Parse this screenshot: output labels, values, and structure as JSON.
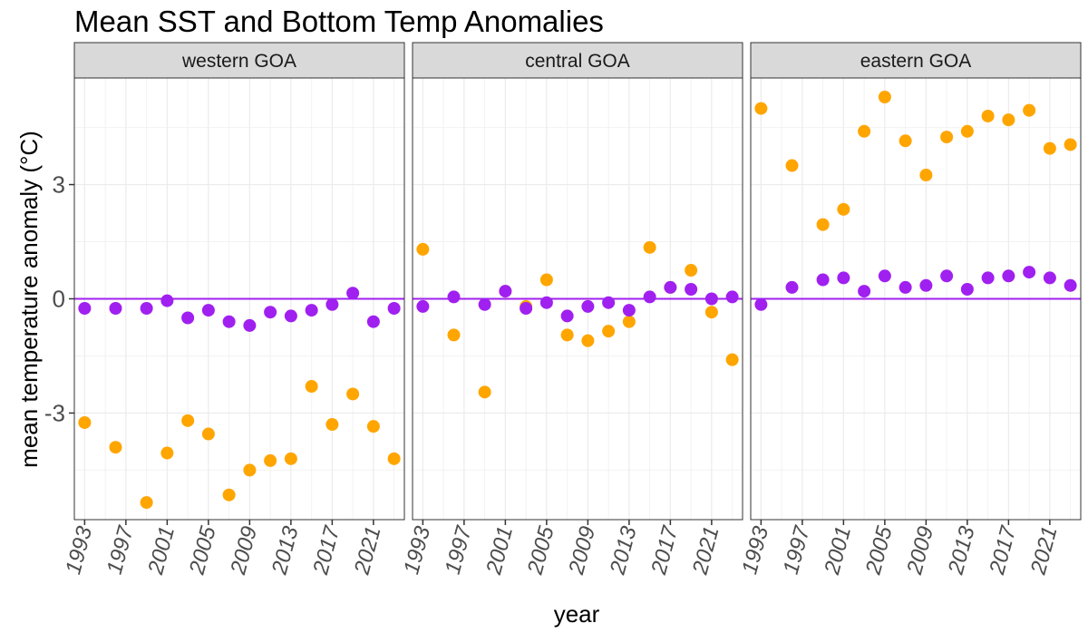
{
  "chart_data": {
    "type": "scatter",
    "title": "Mean SST and Bottom Temp Anomalies",
    "xlabel": "year",
    "ylabel": "mean temperature anomaly (°C)",
    "x_ticks": [
      1993,
      1997,
      2001,
      2005,
      2009,
      2013,
      2017,
      2021
    ],
    "y_ticks": [
      -3,
      0,
      3
    ],
    "xlim": [
      1992,
      2024
    ],
    "ylim": [
      -5.8,
      5.8
    ],
    "grid": true,
    "reference_line": {
      "y": 0,
      "color": "#a020f0"
    },
    "colors": {
      "orange_series": "#ffa500",
      "purple_series": "#a020f0"
    },
    "x": [
      1993,
      1996,
      1999,
      2001,
      2003,
      2005,
      2007,
      2009,
      2011,
      2013,
      2015,
      2017,
      2019,
      2021,
      2023
    ],
    "panels": [
      {
        "label": "western GOA",
        "series": [
          {
            "color": "#ffa500",
            "values": [
              -3.25,
              -3.9,
              -5.35,
              -4.05,
              -3.2,
              -3.55,
              -5.15,
              -4.5,
              -4.25,
              -4.2,
              -2.3,
              -3.3,
              -2.5,
              -3.35,
              -4.2
            ]
          },
          {
            "color": "#a020f0",
            "values": [
              -0.25,
              -0.25,
              -0.25,
              -0.05,
              -0.5,
              -0.3,
              -0.6,
              -0.7,
              -0.35,
              -0.45,
              -0.3,
              -0.15,
              0.15,
              -0.6,
              -0.25
            ]
          }
        ]
      },
      {
        "label": "central GOA",
        "series": [
          {
            "color": "#ffa500",
            "values": [
              1.3,
              -0.95,
              -2.45,
              0.2,
              -0.2,
              0.5,
              -0.95,
              -1.1,
              -0.85,
              -0.6,
              1.35,
              0.3,
              0.75,
              -0.35,
              -1.6
            ]
          },
          {
            "color": "#a020f0",
            "values": [
              -0.2,
              0.05,
              -0.15,
              0.2,
              -0.25,
              -0.1,
              -0.45,
              -0.2,
              -0.1,
              -0.3,
              0.05,
              0.3,
              0.25,
              0.0,
              0.05
            ]
          }
        ]
      },
      {
        "label": "eastern GOA",
        "series": [
          {
            "color": "#ffa500",
            "values": [
              5.0,
              3.5,
              1.95,
              2.35,
              4.4,
              5.3,
              4.15,
              3.25,
              4.25,
              4.4,
              4.8,
              4.7,
              4.95,
              3.95,
              4.05
            ]
          },
          {
            "color": "#a020f0",
            "values": [
              -0.15,
              0.3,
              0.5,
              0.55,
              0.2,
              0.6,
              0.3,
              0.35,
              0.6,
              0.25,
              0.55,
              0.6,
              0.7,
              0.55,
              0.35
            ]
          }
        ]
      }
    ]
  }
}
